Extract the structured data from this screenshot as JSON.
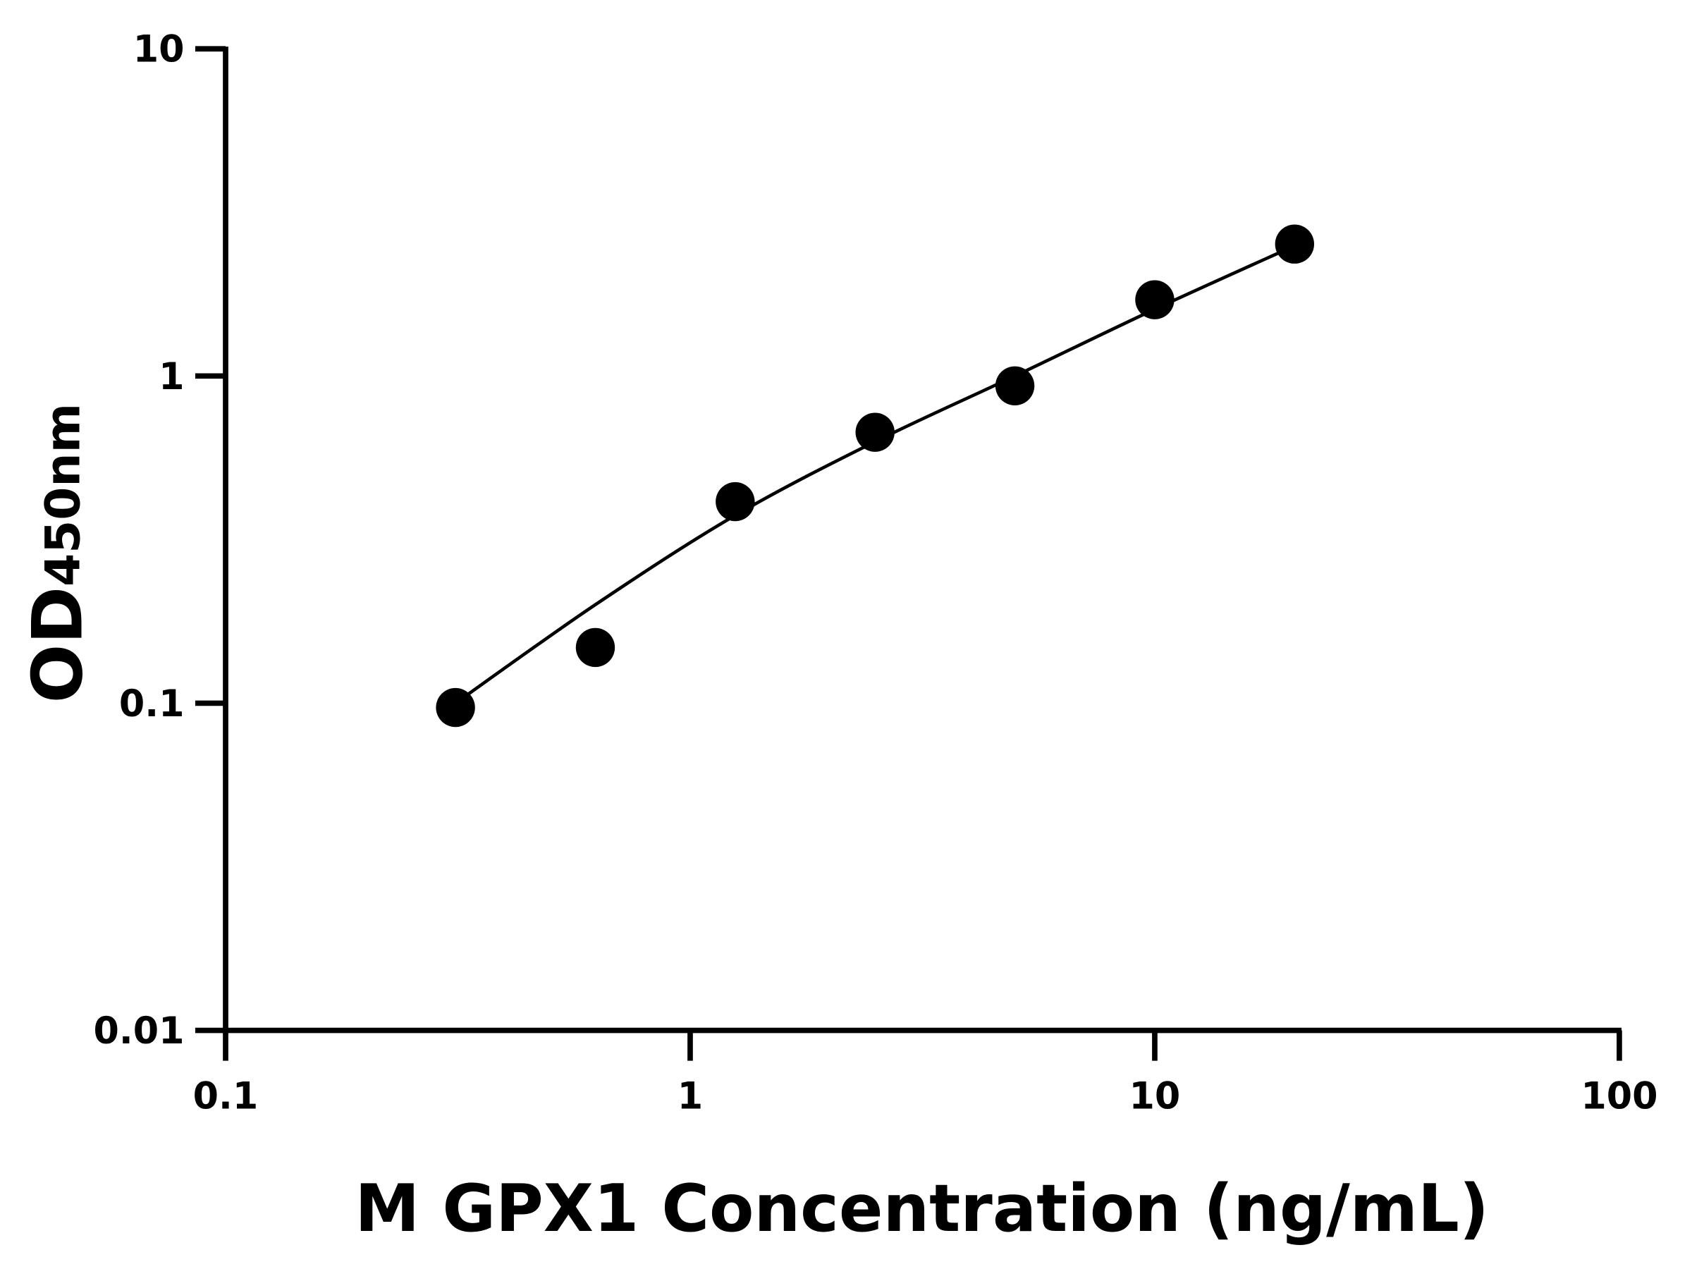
{
  "chart_data": {
    "type": "scatter",
    "xlabel": "M GPX1 Concentration (ng/mL)",
    "ylabel": "OD",
    "ylabel_subscript": "450nm",
    "x_scale": "log",
    "y_scale": "log",
    "xlim": [
      0.1,
      100
    ],
    "ylim": [
      0.01,
      10
    ],
    "x_ticks": [
      "0.1",
      "1",
      "10",
      "100"
    ],
    "y_ticks": [
      "0.01",
      "0.1",
      "1",
      "10"
    ],
    "grid": false,
    "points": {
      "x": [
        0.3125,
        0.625,
        1.25,
        2.5,
        5,
        10,
        20
      ],
      "y": [
        0.097,
        0.148,
        0.413,
        0.673,
        0.933,
        1.71,
        2.53
      ]
    },
    "fit_curve": {
      "x": [
        0.3125,
        0.625,
        1.25,
        2.5,
        5,
        10,
        20
      ],
      "y": [
        0.1,
        0.2,
        0.375,
        0.63,
        1.0,
        1.6,
        2.5
      ]
    },
    "color": "#000000"
  }
}
